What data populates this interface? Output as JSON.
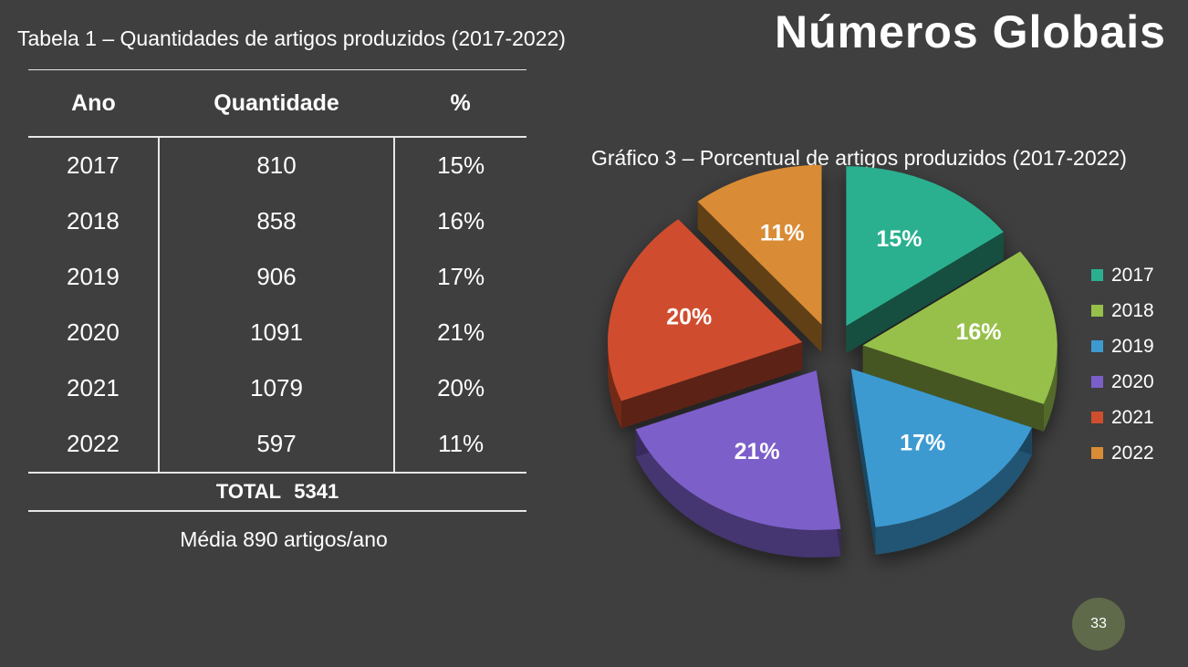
{
  "title": "Números Globais",
  "table": {
    "caption": "Tabela 1 – Quantidades de artigos produzidos (2017-2022)",
    "headers": [
      "Ano",
      "Quantidade",
      "%"
    ],
    "rows": [
      [
        "2017",
        "810",
        "15%"
      ],
      [
        "2018",
        "858",
        "16%"
      ],
      [
        "2019",
        "906",
        "17%"
      ],
      [
        "2020",
        "1091",
        "21%"
      ],
      [
        "2021",
        "1079",
        "20%"
      ],
      [
        "2022",
        "597",
        "11%"
      ]
    ],
    "total_label": "TOTAL",
    "total_value": "5341"
  },
  "mean_note": "Média 890 artigos/ano",
  "chart_data": {
    "type": "pie",
    "title": "Gráfico 3 – Porcentual de artigos produzidos (2017-2022)",
    "categories": [
      "2017",
      "2018",
      "2019",
      "2020",
      "2021",
      "2022"
    ],
    "values": [
      15,
      16,
      17,
      21,
      20,
      11
    ],
    "labels": [
      "15%",
      "16%",
      "17%",
      "21%",
      "20%",
      "11%"
    ],
    "colors": [
      "#2bb08f",
      "#97c04b",
      "#3d9ad1",
      "#7b5fc9",
      "#cf4e2e",
      "#d98c35"
    ],
    "exploded": true,
    "three_d": true,
    "legend_position": "right"
  },
  "page_number": "33"
}
